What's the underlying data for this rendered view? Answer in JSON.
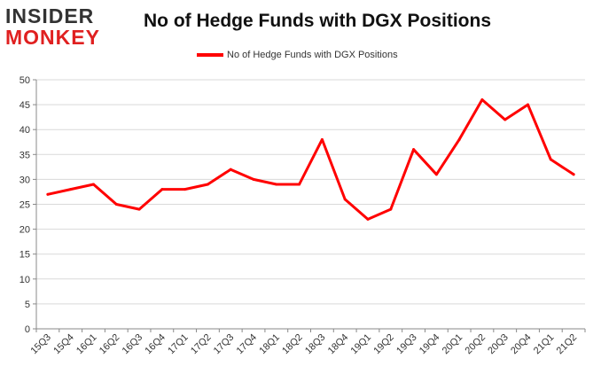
{
  "logo": {
    "line1": "INSIDER",
    "line2": "MONKEY"
  },
  "chart_data": {
    "type": "line",
    "title": "No of Hedge Funds with DGX Positions",
    "xlabel": "",
    "ylabel": "",
    "categories": [
      "15Q3",
      "15Q4",
      "16Q1",
      "16Q2",
      "16Q3",
      "16Q4",
      "17Q1",
      "17Q2",
      "17Q3",
      "17Q4",
      "18Q1",
      "18Q2",
      "18Q3",
      "18Q4",
      "19Q1",
      "19Q2",
      "19Q3",
      "19Q4",
      "20Q1",
      "20Q2",
      "20Q3",
      "20Q4",
      "21Q1",
      "21Q2"
    ],
    "series": [
      {
        "name": "No of Hedge Funds with DGX Positions",
        "values": [
          27,
          28,
          29,
          25,
          24,
          28,
          28,
          29,
          32,
          30,
          29,
          29,
          38,
          26,
          22,
          24,
          36,
          31,
          38,
          46,
          42,
          45,
          34,
          31
        ],
        "color": "#ff0000"
      }
    ],
    "ylim": [
      0,
      50
    ],
    "yticks": [
      0,
      5,
      10,
      15,
      20,
      25,
      30,
      35,
      40,
      45,
      50
    ],
    "grid": true,
    "legend_position": "top-center"
  }
}
